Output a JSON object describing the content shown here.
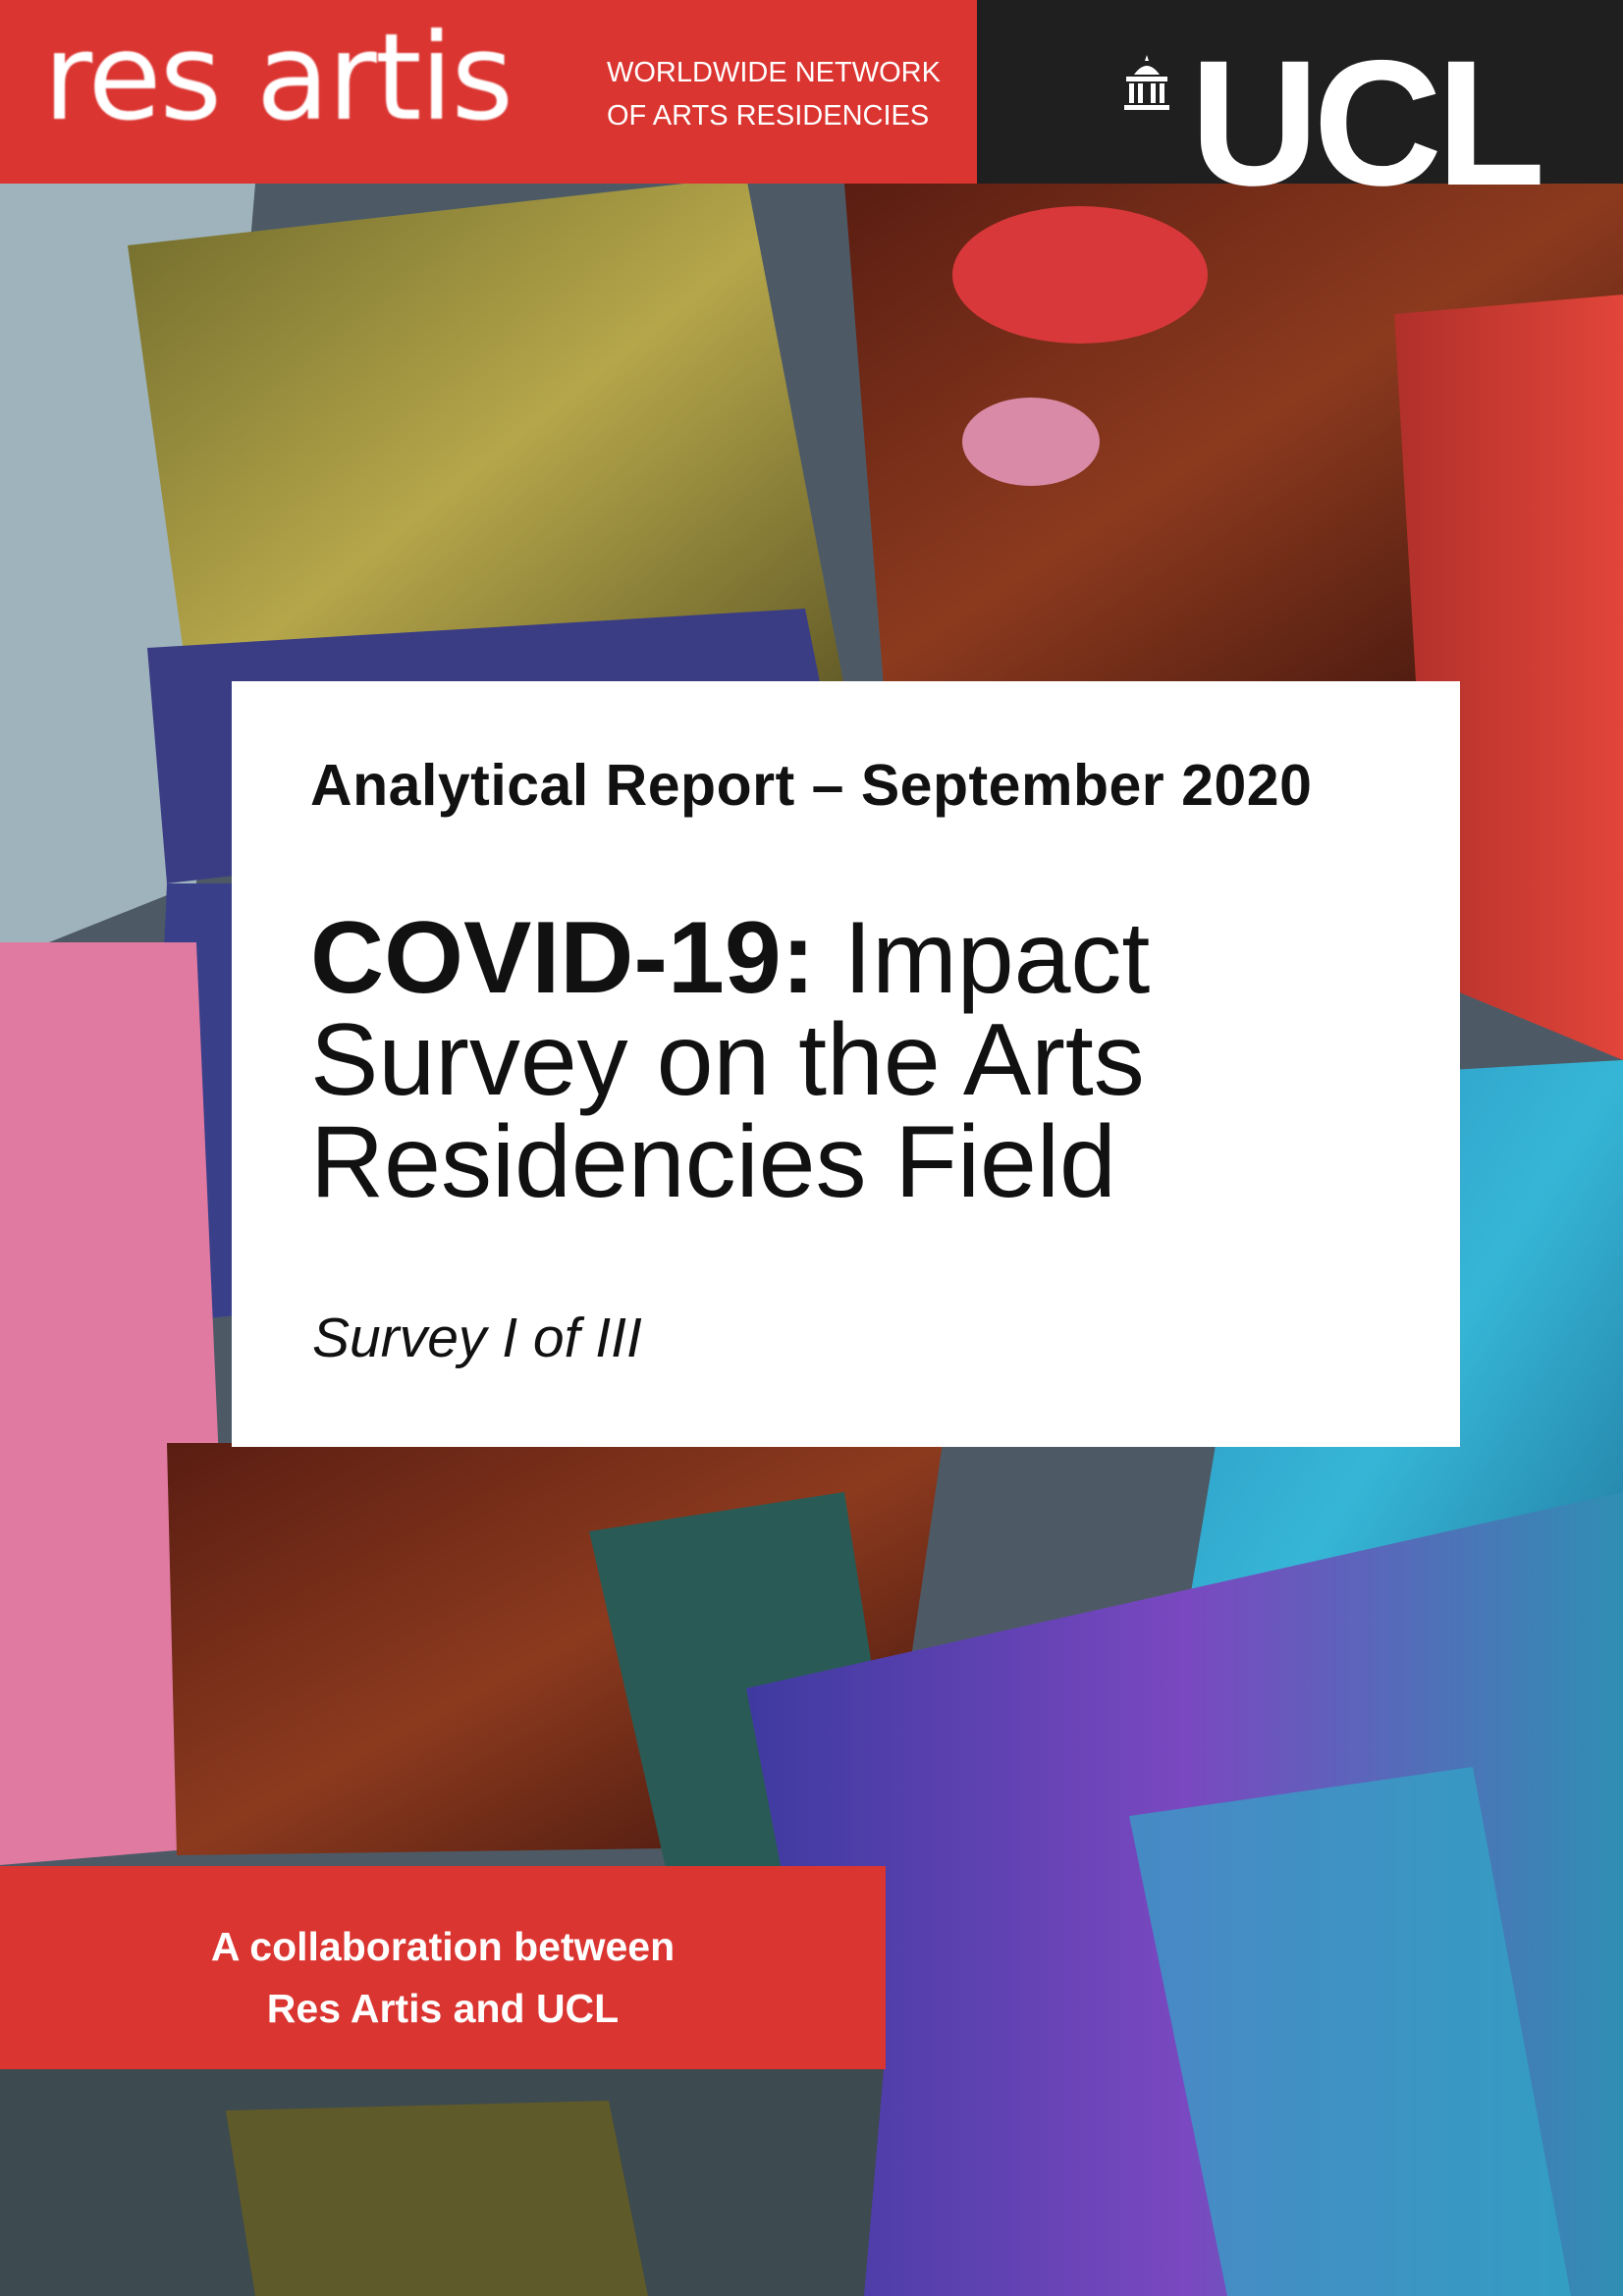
{
  "header": {
    "resartis_logo": "res artis",
    "resartis_tagline_line1": "WORLDWIDE NETWORK",
    "resartis_tagline_line2": "OF ARTS RESIDENCIES",
    "ucl_logo": "UCL",
    "colors": {
      "resartis_red": "#db3531",
      "ucl_black": "#1f1f1f"
    }
  },
  "background_image": {
    "description_icon": "paintbrushes-photo"
  },
  "title_card": {
    "report_date": "Analytical Report – September 2020",
    "title_bold": "COVID-19:",
    "title_rest_line1": " Impact",
    "title_line2": "Survey on the Arts",
    "title_line3": "Residencies Field",
    "survey_number": "Survey I of III"
  },
  "collaboration": {
    "line1": "A collaboration between",
    "line2": "Res Artis and UCL"
  }
}
